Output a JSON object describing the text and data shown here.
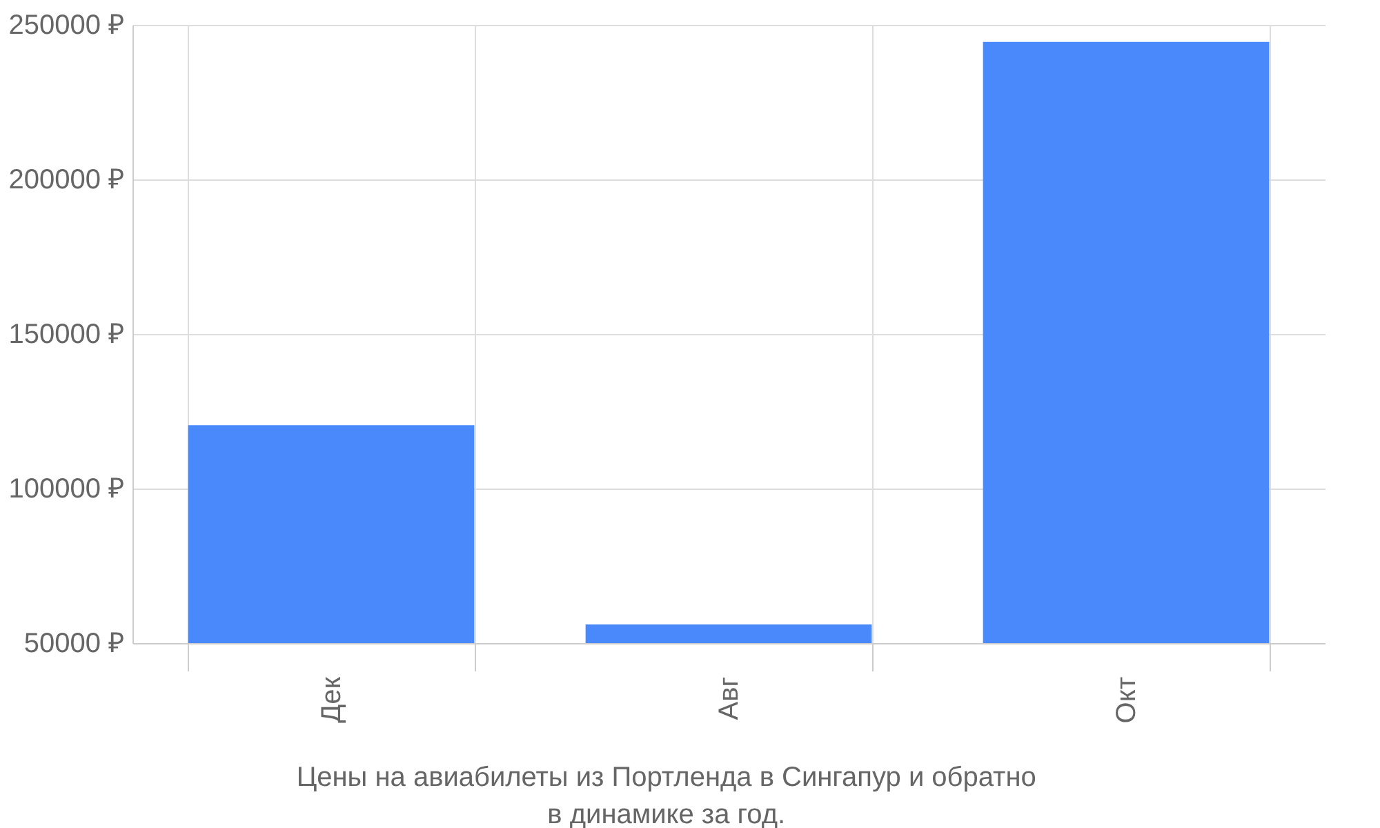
{
  "chart_data": {
    "type": "bar",
    "categories": [
      "Дек",
      "Авг",
      "Окт"
    ],
    "values": [
      120500,
      56000,
      244500
    ],
    "color": "#4a89fb",
    "ylim": [
      50000,
      250000
    ],
    "yticks": [
      {
        "value": 50000,
        "label": "50000 ₽"
      },
      {
        "value": 100000,
        "label": "100000 ₽"
      },
      {
        "value": 150000,
        "label": "150000 ₽"
      },
      {
        "value": 200000,
        "label": "200000 ₽"
      },
      {
        "value": 250000,
        "label": "250000 ₽"
      }
    ],
    "grid": true,
    "annotations": [
      "Цены на авиабилеты из Портленда в Сингапур и обратно",
      "в динамике за год."
    ]
  }
}
